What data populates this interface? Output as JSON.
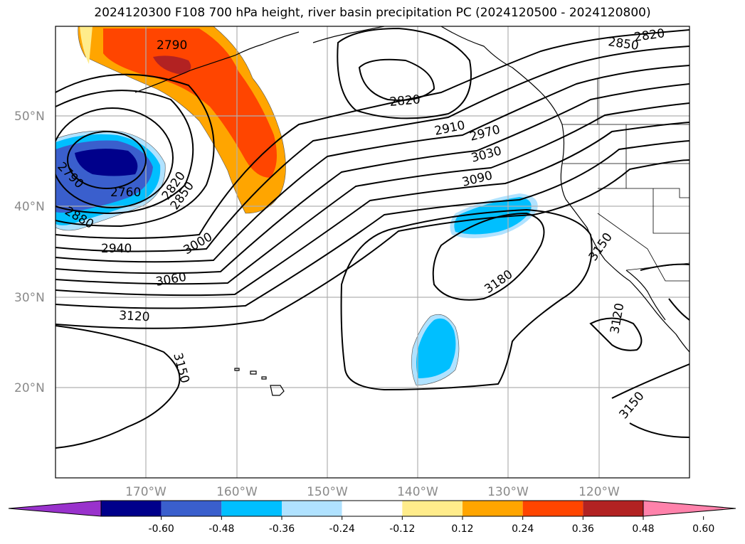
{
  "title": "2024120300 F108 700 hPa height, river basin precipitation PC (2024120500 - 2024120800)",
  "latitude_labels": [
    "50°N",
    "40°N",
    "30°N",
    "20°N"
  ],
  "longitude_labels": [
    "170°W",
    "160°W",
    "150°W",
    "140°W",
    "130°W",
    "120°W"
  ],
  "contour_labels": [
    "2790",
    "2820",
    "2850",
    "2820",
    "2910",
    "2970",
    "3030",
    "3090",
    "2790",
    "2760",
    "2820",
    "2850",
    "2880",
    "3000",
    "2940",
    "3060",
    "3120",
    "3180",
    "3150",
    "3150",
    "3120",
    "3150"
  ],
  "colorbar": {
    "ticks": [
      "-0.60",
      "-0.48",
      "-0.36",
      "-0.24",
      "-0.12",
      "0.12",
      "0.24",
      "0.36",
      "0.48",
      "0.60"
    ],
    "colors": [
      "#9932cc",
      "#00008b",
      "#3a5fcd",
      "#00bfff",
      "#b0e2ff",
      "#ffffff",
      "#ffec8b",
      "#ffa500",
      "#ff4500",
      "#b22222",
      "#ff82ab"
    ]
  }
}
